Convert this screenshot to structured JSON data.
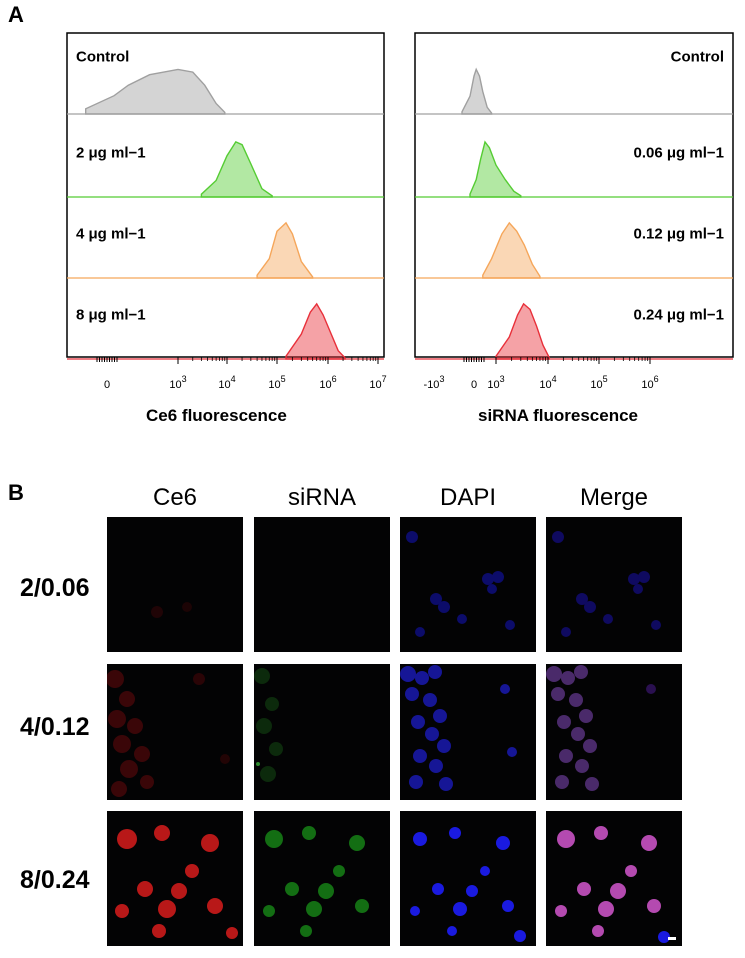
{
  "panel_labels": {
    "a": "A",
    "b": "B"
  },
  "chart_data": [
    {
      "type": "area",
      "x_scale": "biexponential",
      "x_ticks": [
        "0",
        "10^3",
        "10^4",
        "10^5",
        "10^6",
        "10^7"
      ],
      "xlabel": "Ce6 fluorescence",
      "grid": false,
      "series": [
        {
          "name": "Control",
          "color": "#a0a0a0",
          "x": [
            -300,
            100,
            300,
            600,
            1000,
            2000,
            3500,
            6000,
            9000
          ],
          "y": [
            0.1,
            0.35,
            0.55,
            0.75,
            0.85,
            0.8,
            0.55,
            0.2,
            0.03
          ]
        },
        {
          "name": "2 μg ml−1",
          "color": "#55cc33",
          "x": [
            3000,
            6000,
            10000,
            15000,
            20000,
            30000,
            50000,
            80000
          ],
          "y": [
            0.05,
            0.3,
            0.75,
            1.0,
            0.95,
            0.6,
            0.15,
            0.02
          ]
        },
        {
          "name": "4 μg ml−1",
          "color": "#f5a65a",
          "x": [
            40000,
            70000,
            100000,
            150000,
            200000,
            300000,
            500000
          ],
          "y": [
            0.05,
            0.35,
            0.85,
            1.0,
            0.8,
            0.3,
            0.02
          ]
        },
        {
          "name": "8 μg ml−1",
          "color": "#e8303a",
          "x": [
            150000,
            300000,
            450000,
            600000,
            800000,
            1100000,
            1600000,
            2200000
          ],
          "y": [
            0.05,
            0.45,
            0.85,
            1.0,
            0.8,
            0.5,
            0.15,
            0.02
          ]
        }
      ]
    },
    {
      "type": "area",
      "x_scale": "biexponential",
      "x_ticks": [
        "-10^3",
        "0",
        "10^3",
        "10^4",
        "10^5",
        "10^6"
      ],
      "xlabel": "siRNA fluorescence",
      "grid": false,
      "series": [
        {
          "name": "Control",
          "color": "#a0a0a0",
          "x": [
            -300,
            -100,
            0,
            100,
            250,
            400,
            600,
            800
          ],
          "y": [
            0.05,
            0.4,
            0.85,
            1.0,
            0.85,
            0.5,
            0.15,
            0.02
          ]
        },
        {
          "name": "0.06 μg ml−1",
          "color": "#55cc33",
          "x": [
            -100,
            100,
            300,
            500,
            700,
            1000,
            1500,
            2200,
            3000
          ],
          "y": [
            0.05,
            0.3,
            0.65,
            0.95,
            0.85,
            0.55,
            0.3,
            0.1,
            0.02
          ]
        },
        {
          "name": "0.12 μg ml−1",
          "color": "#f5a65a",
          "x": [
            400,
            800,
            1300,
            1800,
            2500,
            3500,
            5000,
            7000
          ],
          "y": [
            0.05,
            0.35,
            0.8,
            1.0,
            0.85,
            0.6,
            0.25,
            0.03
          ]
        },
        {
          "name": "0.24 μg ml−1",
          "color": "#e8303a",
          "x": [
            1000,
            1800,
            2600,
            3400,
            4500,
            6000,
            8000,
            10500
          ],
          "y": [
            0.05,
            0.4,
            0.8,
            1.0,
            0.9,
            0.6,
            0.25,
            0.03
          ]
        }
      ]
    }
  ],
  "panel_b": {
    "columns": [
      "Ce6",
      "siRNA",
      "DAPI",
      "Merge"
    ],
    "rows": [
      "2/0.06",
      "4/0.12",
      "8/0.24"
    ]
  }
}
